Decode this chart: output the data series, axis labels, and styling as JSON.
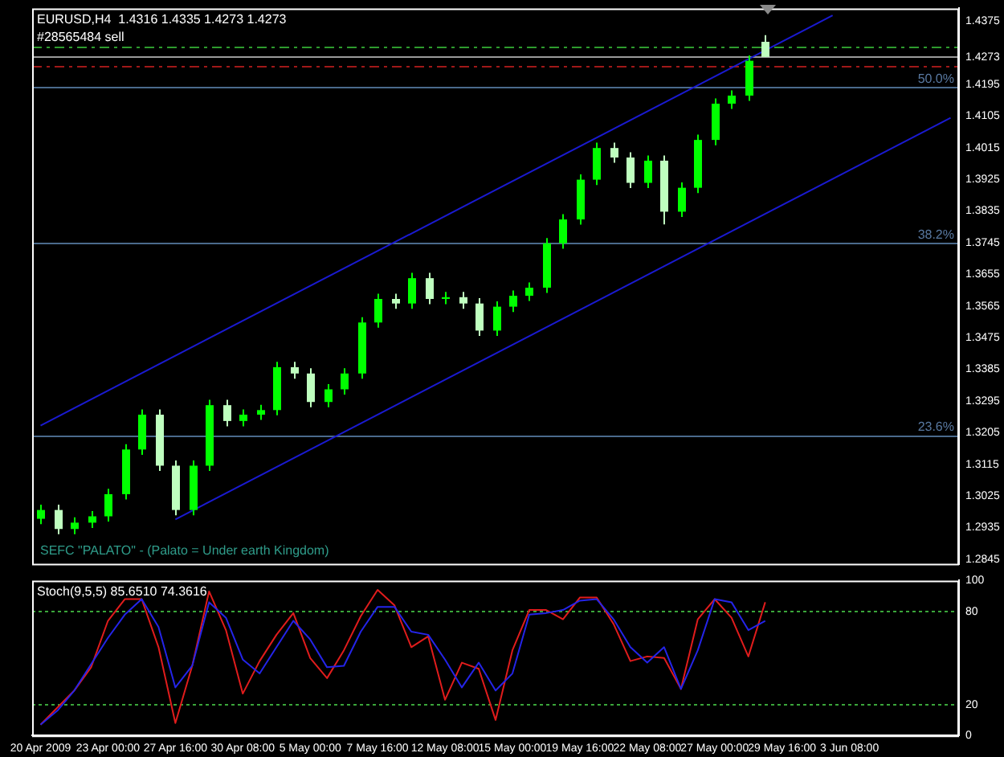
{
  "chart_data": [
    {
      "type": "candlestick",
      "title": "EURUSD,H4  1.4316 1.4335 1.4273 1.4273",
      "colors": [
        "#00ff00",
        "#bfffbf",
        "#00ff00",
        "#00ff00",
        "#00ff00",
        "#00ff00",
        "#00ff00",
        "#bfffbf",
        "#bfffbf",
        "#00ff00",
        "#00ff00",
        "#bfffbf",
        "#00ff00",
        "#00ff00",
        "#00ff00",
        "#bfffbf",
        "#bfffbf",
        "#00ff00",
        "#00ff00",
        "#00ff00",
        "#00ff00",
        "#bfffbf",
        "#00ff00",
        "#bfffbf",
        "#00ff00",
        "#bfffbf",
        "#bfffbf",
        "#00ff00",
        "#00ff00",
        "#00ff00",
        "#00ff00",
        "#00ff00",
        "#00ff00",
        "#00ff00",
        "#bfffbf",
        "#bfffbf",
        "#00ff00",
        "#bfffbf",
        "#00ff00",
        "#00ff00",
        "#00ff00",
        "#00ff00",
        "#00ff00",
        "#bfffbf",
        null,
        null,
        null,
        null,
        null,
        null,
        null,
        null,
        null,
        null,
        null
      ],
      "ohlc": [
        [
          1.296,
          1.3,
          1.2945,
          1.2985
        ],
        [
          1.2985,
          1.3,
          1.2916,
          1.2931
        ],
        [
          1.2931,
          1.2964,
          1.2916,
          1.2949
        ],
        [
          1.2949,
          1.2982,
          1.2934,
          1.2967
        ],
        [
          1.2967,
          1.3045,
          1.2952,
          1.303
        ],
        [
          1.303,
          1.3172,
          1.3015,
          1.3157
        ],
        [
          1.3157,
          1.3271,
          1.3142,
          1.3256
        ],
        [
          1.3256,
          1.3271,
          1.3096,
          1.3111
        ],
        [
          1.3111,
          1.3126,
          1.297,
          1.2985
        ],
        [
          1.2985,
          1.3126,
          1.297,
          1.3111
        ],
        [
          1.3111,
          1.3298,
          1.3096,
          1.3283
        ],
        [
          1.3283,
          1.3298,
          1.3223,
          1.3238
        ],
        [
          1.3238,
          1.3271,
          1.3223,
          1.3256
        ],
        [
          1.3256,
          1.3284,
          1.3241,
          1.3269
        ],
        [
          1.3269,
          1.3406,
          1.3254,
          1.3391
        ],
        [
          1.3391,
          1.3406,
          1.3358,
          1.3373
        ],
        [
          1.3373,
          1.3388,
          1.3277,
          1.3292
        ],
        [
          1.3292,
          1.3343,
          1.3277,
          1.3328
        ],
        [
          1.3328,
          1.3388,
          1.3313,
          1.3373
        ],
        [
          1.3373,
          1.3533,
          1.3358,
          1.3518
        ],
        [
          1.3518,
          1.36,
          1.3503,
          1.3585
        ],
        [
          1.3585,
          1.36,
          1.3557,
          1.3572
        ],
        [
          1.3572,
          1.3659,
          1.3557,
          1.3644
        ],
        [
          1.3644,
          1.3659,
          1.357,
          1.3585
        ],
        [
          1.3585,
          1.3605,
          1.357,
          1.359
        ],
        [
          1.359,
          1.3605,
          1.3557,
          1.3572
        ],
        [
          1.3572,
          1.3587,
          1.348,
          1.3495
        ],
        [
          1.3495,
          1.3578,
          1.348,
          1.3563
        ],
        [
          1.3563,
          1.3609,
          1.3548,
          1.3594
        ],
        [
          1.3594,
          1.3632,
          1.3579,
          1.3617
        ],
        [
          1.3617,
          1.3758,
          1.3602,
          1.3743
        ],
        [
          1.3743,
          1.3826,
          1.3728,
          1.3811
        ],
        [
          1.3811,
          1.3939,
          1.3796,
          1.3924
        ],
        [
          1.3924,
          1.4029,
          1.3909,
          1.4014
        ],
        [
          1.4014,
          1.4029,
          1.3972,
          1.3987
        ],
        [
          1.3987,
          1.4002,
          1.39,
          1.3915
        ],
        [
          1.3915,
          1.3993,
          1.39,
          1.3978
        ],
        [
          1.3978,
          1.3993,
          1.3797,
          1.3833
        ],
        [
          1.3833,
          1.3916,
          1.3818,
          1.3901
        ],
        [
          1.3901,
          1.4052,
          1.3886,
          1.4037
        ],
        [
          1.4037,
          1.4155,
          1.4022,
          1.414
        ],
        [
          1.414,
          1.4178,
          1.4125,
          1.4163
        ],
        [
          1.4163,
          1.4277,
          1.4148,
          1.4262
        ],
        [
          1.4316,
          1.4335,
          1.4273,
          1.4273
        ],
        null,
        null,
        null,
        null,
        null,
        null,
        null,
        null,
        null,
        null,
        null
      ],
      "series": [
        {
          "type": "line",
          "color": "#1a1ad0",
          "values": [
            1.3225,
            null,
            null,
            null,
            null,
            null,
            null,
            null,
            null,
            null,
            null,
            null,
            null,
            null,
            null,
            null,
            null,
            null,
            null,
            null,
            null,
            null,
            null,
            null,
            null,
            null,
            null,
            null,
            null,
            null,
            null,
            null,
            null,
            null,
            null,
            null,
            null,
            null,
            null,
            null,
            null,
            null,
            null,
            null,
            null,
            null,
            null,
            1.4391,
            null,
            null,
            null,
            null,
            null,
            null,
            null
          ]
        },
        {
          "type": "line",
          "color": "#1a1ad0",
          "values": [
            null,
            null,
            null,
            null,
            null,
            null,
            null,
            null,
            1.2958,
            null,
            null,
            null,
            null,
            null,
            null,
            null,
            null,
            null,
            null,
            null,
            null,
            null,
            null,
            null,
            null,
            null,
            null,
            null,
            null,
            null,
            null,
            null,
            null,
            null,
            null,
            null,
            null,
            null,
            null,
            null,
            null,
            null,
            null,
            null,
            null,
            null,
            null,
            null,
            null,
            null,
            null,
            null,
            null,
            null,
            1.41
          ]
        }
      ],
      "ylim": [
        1.2832,
        1.4411
      ],
      "yticks": [
        1.2845,
        1.2935,
        1.3025,
        1.3115,
        1.3205,
        1.3295,
        1.3385,
        1.3475,
        1.3565,
        1.3655,
        1.3745,
        1.3835,
        1.3925,
        1.4015,
        1.4105,
        1.4195,
        1.4273,
        1.4375
      ],
      "tick_labels": "y",
      "grid": false,
      "legend": false,
      "ref_lines": [
        {
          "axis": "y",
          "value": 1.4303,
          "label": "#28565484 sell",
          "color": "#2e9b2e",
          "line_style": "dashed"
        },
        {
          "axis": "y",
          "value": 1.4273,
          "color": "#9a9a9a",
          "line_style": "solid"
        },
        {
          "axis": "y",
          "value": 1.4249,
          "color": "#a01818",
          "line_style": "dashed"
        },
        {
          "axis": "y",
          "value": 1.4186,
          "color": "#4a6a8c",
          "line_style": "solid"
        },
        {
          "axis": "y",
          "value": 1.3743,
          "color": "#4a6a8c",
          "line_style": "solid"
        },
        {
          "axis": "y",
          "value": 1.3197,
          "color": "#4a6a8c",
          "line_style": "solid"
        }
      ],
      "annotations": [
        {
          "text": "50.0%",
          "y": 1.4186
        },
        {
          "text": "38.2%",
          "y": 1.3743
        },
        {
          "text": "23.6%",
          "y": 1.3197
        },
        "SEFC \"PALATO\" - (Palato = Under earth Kingdom)"
      ]
    },
    {
      "type": "line",
      "title": "Stoch(9,5,5) 85.6510 74.3616",
      "marker": "none",
      "categories": [
        "20 Apr 2009",
        null,
        null,
        null,
        "23 Apr 00:00",
        null,
        null,
        null,
        "27 Apr 16:00",
        null,
        null,
        null,
        "30 Apr 08:00",
        null,
        null,
        null,
        "5 May 00:00",
        null,
        null,
        null,
        "7 May 16:00",
        null,
        null,
        null,
        "12 May 08:00",
        null,
        null,
        null,
        "15 May 00:00",
        null,
        null,
        null,
        "19 May 16:00",
        null,
        null,
        null,
        "22 May 08:00",
        null,
        null,
        null,
        "27 May 00:00",
        null,
        null,
        null,
        "29 May 16:00",
        null,
        null,
        null,
        "3 Jun 08:00",
        null,
        null,
        null,
        null,
        null,
        null
      ],
      "series": [
        {
          "color": "#2424e8",
          "values": [
            7,
            16,
            29,
            46,
            63,
            78,
            88,
            70,
            31,
            45,
            86,
            76,
            49,
            40,
            57,
            74,
            62,
            44,
            45,
            67,
            83,
            83,
            67,
            65,
            49,
            31,
            47,
            29,
            40,
            78,
            79,
            81,
            87,
            88,
            75,
            57,
            47,
            57,
            30,
            55,
            88,
            86,
            68,
            74,
            null,
            null,
            null,
            null,
            null,
            null,
            null,
            null,
            null,
            null,
            null
          ]
        },
        {
          "color": "#e01c1c",
          "values": [
            7,
            18,
            29,
            44,
            74,
            88,
            88,
            57,
            8,
            45,
            93,
            68,
            27,
            48,
            65,
            79,
            50,
            37,
            55,
            77,
            94,
            84,
            57,
            64,
            23,
            47,
            43,
            10,
            55,
            81,
            81,
            75,
            89,
            89,
            72,
            48,
            51,
            50,
            30,
            75,
            88,
            76,
            51,
            86,
            null,
            null,
            null,
            null,
            null,
            null,
            null,
            null,
            null,
            null,
            null
          ]
        }
      ],
      "ylim": [
        0,
        100
      ],
      "yticks": [
        0,
        20,
        80,
        100
      ],
      "grid": false,
      "legend": false,
      "ref_lines": [
        {
          "axis": "y",
          "value": 20,
          "color": "#3aa63a",
          "line_style": "dotted"
        },
        {
          "axis": "y",
          "value": 80,
          "color": "#3aa63a",
          "line_style": "dotted"
        }
      ]
    }
  ]
}
